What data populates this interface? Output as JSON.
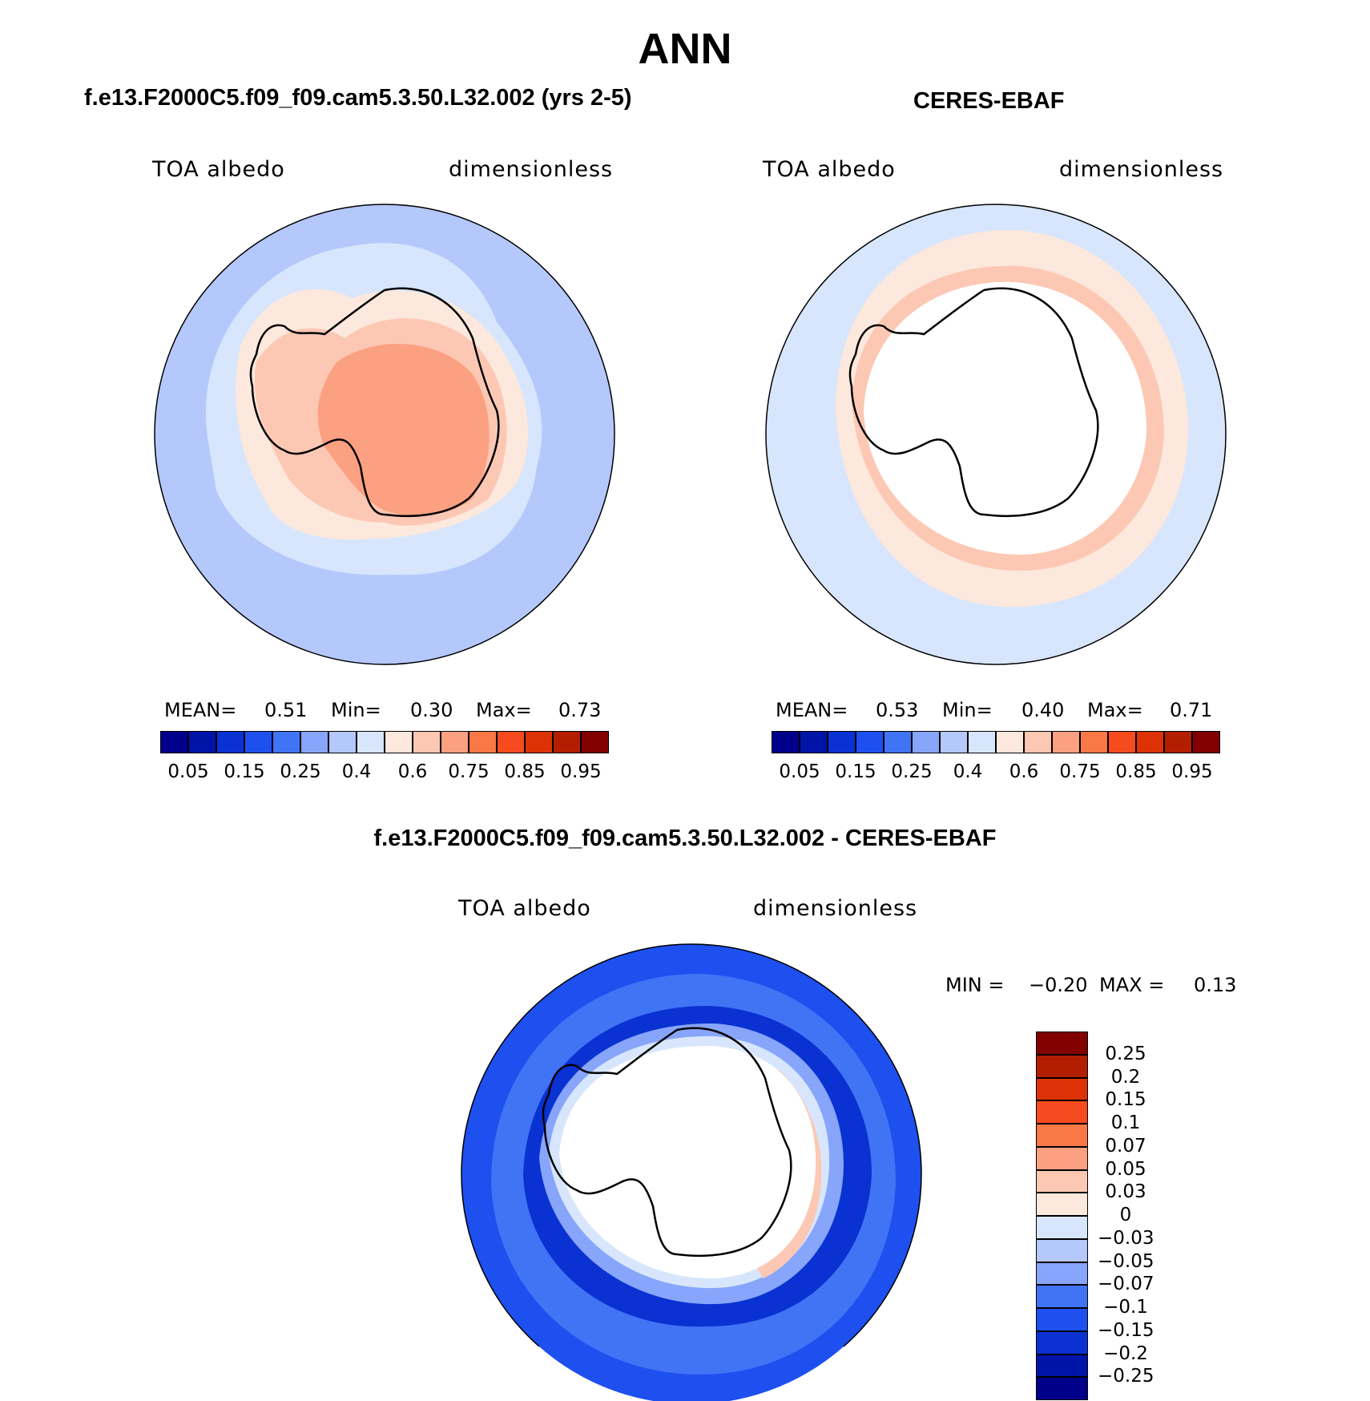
{
  "title": "ANN",
  "panels": {
    "model": {
      "caption": "f.e13.F2000C5.f09_f09.cam5.3.50.L32.002 (yrs 2-5)",
      "variable": "TOA albedo",
      "units": "dimensionless",
      "stats": {
        "mean_label": "MEAN=",
        "mean": "0.51",
        "min_label": "Min=",
        "min": "0.30",
        "max_label": "Max=",
        "max": "0.73"
      }
    },
    "obs": {
      "caption": "CERES-EBAF",
      "variable": "TOA albedo",
      "units": "dimensionless",
      "stats": {
        "mean_label": "MEAN=",
        "mean": "0.53",
        "min_label": "Min=",
        "min": "0.40",
        "max_label": "Max=",
        "max": "0.71"
      }
    },
    "diff": {
      "caption": "f.e13.F2000C5.f09_f09.cam5.3.50.L32.002 - CERES-EBAF",
      "variable": "TOA albedo",
      "units": "dimensionless",
      "stats": {
        "min_label": "MIN =",
        "min": "−0.20",
        "max_label": "MAX =",
        "max": "0.13"
      }
    }
  },
  "colorbar_abs": {
    "colors": [
      "#00008a",
      "#0014a8",
      "#0a32d2",
      "#1e50f0",
      "#4173f5",
      "#87a5fa",
      "#b4c8fc",
      "#d7e6fc",
      "#fce8dc",
      "#fcc8b4",
      "#fca082",
      "#fa7846",
      "#f54b1e",
      "#dc3205",
      "#b41e00",
      "#820000"
    ],
    "tick_labels": [
      "0.05",
      "0.15",
      "0.25",
      "0.4",
      "0.6",
      "0.75",
      "0.85",
      "0.95"
    ]
  },
  "colorbar_diff": {
    "colors": [
      "#00008a",
      "#0014a8",
      "#0a32d2",
      "#1e50f0",
      "#4173f5",
      "#87a5fa",
      "#b4c8fc",
      "#d7e6fc",
      "#fce8dc",
      "#fcc8b4",
      "#fca082",
      "#fa7846",
      "#f54b1e",
      "#dc3205",
      "#b41e00",
      "#820000"
    ],
    "tick_labels": [
      "0.25",
      "0.2",
      "0.15",
      "0.1",
      "0.07",
      "0.05",
      "0.03",
      "0",
      "−0.03",
      "−0.05",
      "−0.07",
      "−0.1",
      "−0.15",
      "−0.2",
      "−0.25"
    ]
  }
}
